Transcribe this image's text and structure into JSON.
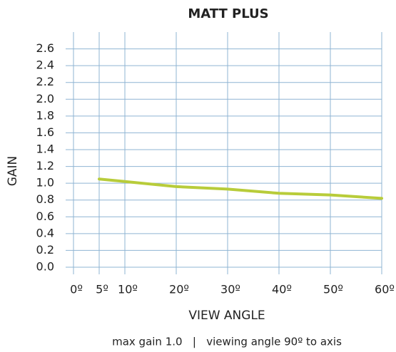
{
  "chart_data": {
    "type": "line",
    "title": "MATT PLUS",
    "x_label": "VIEW ANGLE",
    "y_label": "GAIN",
    "annotation": "max gain 1.0   |   viewing angle 90º to axis",
    "x": [
      5,
      10,
      20,
      30,
      40,
      50,
      60
    ],
    "series": [
      {
        "name": "MATT PLUS",
        "color": "#b8cc3a",
        "values": [
          1.05,
          1.02,
          0.96,
          0.93,
          0.88,
          0.86,
          0.82
        ]
      }
    ],
    "xlim": [
      0,
      60
    ],
    "xticks": [
      {
        "value": 0,
        "label": "0º"
      },
      {
        "value": 5,
        "label": "5º"
      },
      {
        "value": 10,
        "label": "10º"
      },
      {
        "value": 20,
        "label": "20º"
      },
      {
        "value": 30,
        "label": "30º"
      },
      {
        "value": 40,
        "label": "40º"
      },
      {
        "value": 50,
        "label": "50º"
      },
      {
        "value": 60,
        "label": "60º"
      }
    ],
    "ylim": [
      0,
      2.8
    ],
    "yticks": [
      {
        "value": 0,
        "label": "0.0"
      },
      0.2,
      0.4,
      0.6,
      0.8,
      {
        "value": 1,
        "label": "1.0"
      },
      1.2,
      1.4,
      1.6,
      1.8,
      {
        "value": 2,
        "label": "2.0"
      },
      2.2,
      2.4,
      2.6
    ],
    "grid": true
  }
}
